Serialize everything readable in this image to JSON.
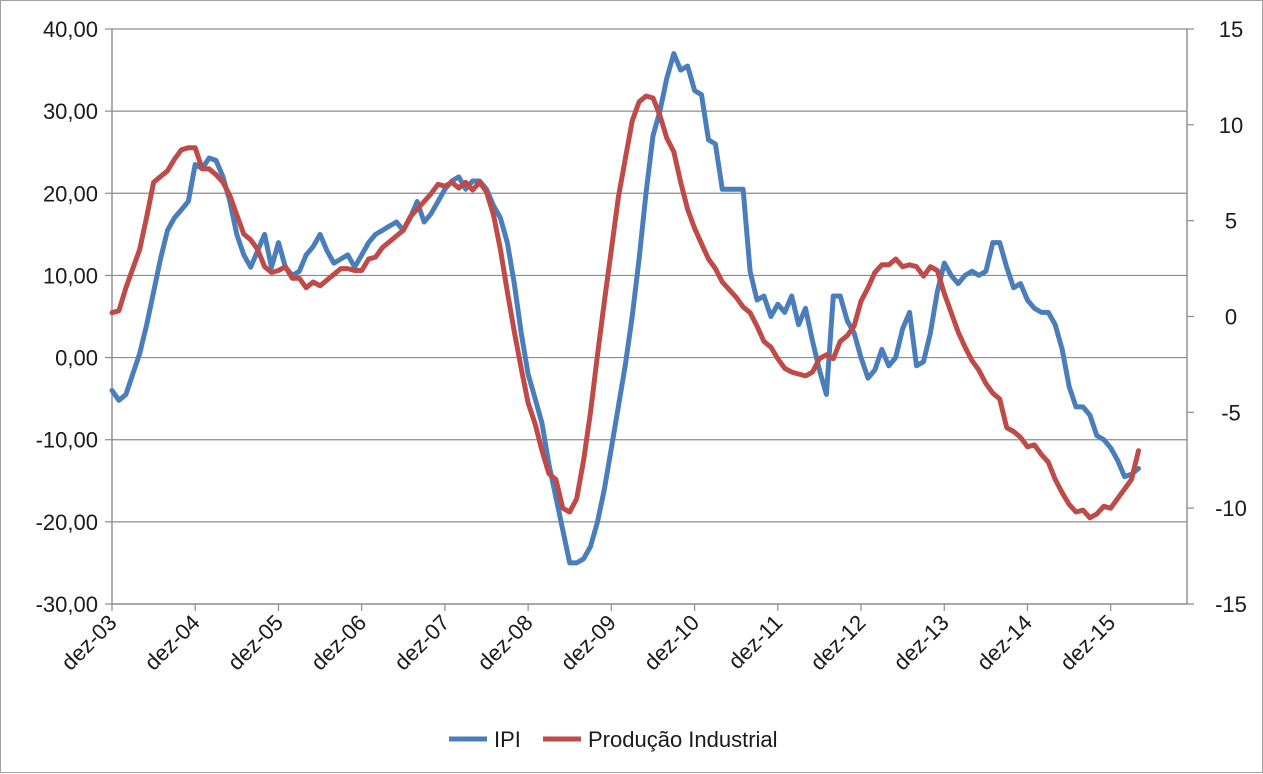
{
  "chart_data": {
    "type": "line",
    "title": "",
    "xlabel": "",
    "ylabel": "",
    "x_ticks": [
      "dez-03",
      "dez-04",
      "dez-05",
      "dez-06",
      "dez-07",
      "dez-08",
      "dez-09",
      "dez-10",
      "dez-11",
      "dez-12",
      "dez-13",
      "dez-14",
      "dez-15"
    ],
    "x_range_months": [
      0,
      155
    ],
    "y_left": {
      "range": [
        -30,
        40
      ],
      "ticks": [
        "40,00",
        "30,00",
        "20,00",
        "10,00",
        "0,00",
        "-10,00",
        "-20,00",
        "-30,00"
      ]
    },
    "y_right": {
      "range": [
        -15,
        15
      ],
      "ticks": [
        "15",
        "10",
        "5",
        "0",
        "-5",
        "-10",
        "-15"
      ]
    },
    "grid": "horizontal",
    "legend": "bottom",
    "series": [
      {
        "name": "IPI",
        "axis": "left",
        "color": "#4a7ebb",
        "points": [
          [
            0,
            -4
          ],
          [
            1,
            -5.2
          ],
          [
            2,
            -4.5
          ],
          [
            3,
            -2
          ],
          [
            4,
            0.5
          ],
          [
            5,
            4
          ],
          [
            6,
            8
          ],
          [
            7,
            12
          ],
          [
            8,
            15.5
          ],
          [
            9,
            17
          ],
          [
            10,
            18
          ],
          [
            11,
            19
          ],
          [
            12,
            23.5
          ],
          [
            13,
            23
          ],
          [
            14,
            24.3
          ],
          [
            15,
            24
          ],
          [
            16,
            22
          ],
          [
            17,
            19
          ],
          [
            18,
            15
          ],
          [
            19,
            12.5
          ],
          [
            20,
            11
          ],
          [
            21,
            13
          ],
          [
            22,
            15
          ],
          [
            23,
            11
          ],
          [
            24,
            14
          ],
          [
            25,
            11
          ],
          [
            26,
            10
          ],
          [
            27,
            10.5
          ],
          [
            28,
            12.5
          ],
          [
            29,
            13.5
          ],
          [
            30,
            15
          ],
          [
            31,
            13
          ],
          [
            32,
            11.5
          ],
          [
            33,
            12
          ],
          [
            34,
            12.5
          ],
          [
            35,
            11
          ],
          [
            36,
            12.5
          ],
          [
            37,
            14
          ],
          [
            38,
            15
          ],
          [
            39,
            15.5
          ],
          [
            40,
            16
          ],
          [
            41,
            16.5
          ],
          [
            42,
            15.5
          ],
          [
            43,
            17
          ],
          [
            44,
            19
          ],
          [
            45,
            16.5
          ],
          [
            46,
            17.5
          ],
          [
            47,
            19
          ],
          [
            48,
            20.5
          ],
          [
            49,
            21.5
          ],
          [
            50,
            22
          ],
          [
            51,
            20.5
          ],
          [
            52,
            21.5
          ],
          [
            53,
            21.5
          ],
          [
            54,
            20.5
          ],
          [
            55,
            18.5
          ],
          [
            56,
            17
          ],
          [
            57,
            14
          ],
          [
            58,
            9
          ],
          [
            59,
            3
          ],
          [
            60,
            -2
          ],
          [
            61,
            -5
          ],
          [
            62,
            -8
          ],
          [
            63,
            -13
          ],
          [
            64,
            -17
          ],
          [
            65,
            -21
          ],
          [
            66,
            -25
          ],
          [
            67,
            -25
          ],
          [
            68,
            -24.5
          ],
          [
            69,
            -23
          ],
          [
            70,
            -20
          ],
          [
            71,
            -16
          ],
          [
            72,
            -11
          ],
          [
            73,
            -6
          ],
          [
            74,
            -1
          ],
          [
            75,
            5
          ],
          [
            76,
            12
          ],
          [
            77,
            20
          ],
          [
            78,
            27
          ],
          [
            79,
            30
          ],
          [
            80,
            34
          ],
          [
            81,
            37
          ],
          [
            82,
            35
          ],
          [
            83,
            35.5
          ],
          [
            84,
            32.5
          ],
          [
            85,
            32
          ],
          [
            86,
            26.5
          ],
          [
            87,
            26
          ],
          [
            88,
            20.5
          ],
          [
            89,
            20.5
          ],
          [
            90,
            20.5
          ],
          [
            91,
            20.5
          ],
          [
            92,
            10.5
          ],
          [
            93,
            7
          ],
          [
            94,
            7.5
          ],
          [
            95,
            5
          ],
          [
            96,
            6.5
          ],
          [
            97,
            5.5
          ],
          [
            98,
            7.5
          ],
          [
            99,
            4
          ],
          [
            100,
            6
          ],
          [
            101,
            2
          ],
          [
            102,
            -1.5
          ],
          [
            103,
            -4.5
          ],
          [
            104,
            7.5
          ],
          [
            105,
            7.5
          ],
          [
            106,
            4.5
          ],
          [
            107,
            3
          ],
          [
            108,
            0
          ],
          [
            109,
            -2.5
          ],
          [
            110,
            -1.5
          ],
          [
            111,
            1
          ],
          [
            112,
            -1
          ],
          [
            113,
            0
          ],
          [
            114,
            3.5
          ],
          [
            115,
            5.5
          ],
          [
            116,
            -1
          ],
          [
            117,
            -0.5
          ],
          [
            118,
            3
          ],
          [
            119,
            8
          ],
          [
            120,
            11.5
          ],
          [
            121,
            10
          ],
          [
            122,
            9
          ],
          [
            123,
            10
          ],
          [
            124,
            10.5
          ],
          [
            125,
            10
          ],
          [
            126,
            10.5
          ],
          [
            127,
            14
          ],
          [
            128,
            14
          ],
          [
            129,
            11
          ],
          [
            130,
            8.5
          ],
          [
            131,
            9
          ],
          [
            132,
            7
          ],
          [
            133,
            6
          ],
          [
            134,
            5.5
          ],
          [
            135,
            5.5
          ],
          [
            136,
            4
          ],
          [
            137,
            1
          ],
          [
            138,
            -3.5
          ],
          [
            139,
            -6
          ],
          [
            140,
            -6
          ],
          [
            141,
            -7
          ],
          [
            142,
            -9.5
          ],
          [
            143,
            -10
          ],
          [
            144,
            -11
          ],
          [
            145,
            -12.5
          ],
          [
            146,
            -14.5
          ],
          [
            147,
            -14.2
          ],
          [
            148,
            -13.5
          ]
        ]
      },
      {
        "name": "Produção Industrial",
        "axis": "right",
        "color": "#be4b48",
        "points": [
          [
            0,
            0.2
          ],
          [
            1,
            0.3
          ],
          [
            2,
            1.5
          ],
          [
            3,
            2.5
          ],
          [
            4,
            3.5
          ],
          [
            5,
            5.2
          ],
          [
            6,
            7
          ],
          [
            7,
            7.3
          ],
          [
            8,
            7.6
          ],
          [
            9,
            8.2
          ],
          [
            10,
            8.7
          ],
          [
            11,
            8.8
          ],
          [
            12,
            8.8
          ],
          [
            13,
            7.7
          ],
          [
            14,
            7.7
          ],
          [
            15,
            7.4
          ],
          [
            16,
            7
          ],
          [
            17,
            6.3
          ],
          [
            18,
            5.3
          ],
          [
            19,
            4.3
          ],
          [
            20,
            4
          ],
          [
            21,
            3.5
          ],
          [
            22,
            2.6
          ],
          [
            23,
            2.3
          ],
          [
            24,
            2.4
          ],
          [
            25,
            2.6
          ],
          [
            26,
            2
          ],
          [
            27,
            2
          ],
          [
            28,
            1.5
          ],
          [
            29,
            1.8
          ],
          [
            30,
            1.6
          ],
          [
            31,
            1.9
          ],
          [
            32,
            2.2
          ],
          [
            33,
            2.5
          ],
          [
            34,
            2.5
          ],
          [
            35,
            2.4
          ],
          [
            36,
            2.4
          ],
          [
            37,
            3
          ],
          [
            38,
            3.1
          ],
          [
            39,
            3.6
          ],
          [
            40,
            3.9
          ],
          [
            41,
            4.2
          ],
          [
            42,
            4.5
          ],
          [
            43,
            5.2
          ],
          [
            44,
            5.6
          ],
          [
            45,
            6
          ],
          [
            46,
            6.4
          ],
          [
            47,
            6.9
          ],
          [
            48,
            6.8
          ],
          [
            49,
            7
          ],
          [
            50,
            6.7
          ],
          [
            51,
            7
          ],
          [
            52,
            6.6
          ],
          [
            53,
            7
          ],
          [
            54,
            6.5
          ],
          [
            55,
            5.3
          ],
          [
            56,
            3.5
          ],
          [
            57,
            1.3
          ],
          [
            58,
            -0.8
          ],
          [
            59,
            -2.7
          ],
          [
            60,
            -4.5
          ],
          [
            61,
            -5.6
          ],
          [
            62,
            -7
          ],
          [
            63,
            -8.2
          ],
          [
            64,
            -8.5
          ],
          [
            65,
            -10
          ],
          [
            66,
            -10.2
          ],
          [
            67,
            -9.5
          ],
          [
            68,
            -7.5
          ],
          [
            69,
            -5
          ],
          [
            70,
            -2
          ],
          [
            71,
            0.8
          ],
          [
            72,
            3.5
          ],
          [
            73,
            6.2
          ],
          [
            74,
            8.2
          ],
          [
            75,
            10.2
          ],
          [
            76,
            11.2
          ],
          [
            77,
            11.5
          ],
          [
            78,
            11.4
          ],
          [
            79,
            10.5
          ],
          [
            80,
            9.3
          ],
          [
            81,
            8.6
          ],
          [
            82,
            7
          ],
          [
            83,
            5.6
          ],
          [
            84,
            4.6
          ],
          [
            85,
            3.8
          ],
          [
            86,
            3
          ],
          [
            87,
            2.5
          ],
          [
            88,
            1.8
          ],
          [
            89,
            1.4
          ],
          [
            90,
            1
          ],
          [
            91,
            0.5
          ],
          [
            92,
            0.2
          ],
          [
            93,
            -0.5
          ],
          [
            94,
            -1.3
          ],
          [
            95,
            -1.6
          ],
          [
            96,
            -2.2
          ],
          [
            97,
            -2.7
          ],
          [
            98,
            -2.9
          ],
          [
            99,
            -3
          ],
          [
            100,
            -3.1
          ],
          [
            101,
            -2.9
          ],
          [
            102,
            -2.2
          ],
          [
            103,
            -2
          ],
          [
            104,
            -2.2
          ],
          [
            105,
            -1.3
          ],
          [
            106,
            -1
          ],
          [
            107,
            -0.5
          ],
          [
            108,
            0.8
          ],
          [
            109,
            1.5
          ],
          [
            110,
            2.3
          ],
          [
            111,
            2.7
          ],
          [
            112,
            2.7
          ],
          [
            113,
            3
          ],
          [
            114,
            2.6
          ],
          [
            115,
            2.7
          ],
          [
            116,
            2.6
          ],
          [
            117,
            2.1
          ],
          [
            118,
            2.6
          ],
          [
            119,
            2.4
          ],
          [
            120,
            1.2
          ],
          [
            121,
            0.2
          ],
          [
            122,
            -0.8
          ],
          [
            123,
            -1.6
          ],
          [
            124,
            -2.3
          ],
          [
            125,
            -2.8
          ],
          [
            126,
            -3.5
          ],
          [
            127,
            -4
          ],
          [
            128,
            -4.3
          ],
          [
            129,
            -5.8
          ],
          [
            130,
            -6
          ],
          [
            131,
            -6.3
          ],
          [
            132,
            -6.8
          ],
          [
            133,
            -6.7
          ],
          [
            134,
            -7.2
          ],
          [
            135,
            -7.6
          ],
          [
            136,
            -8.5
          ],
          [
            137,
            -9.2
          ],
          [
            138,
            -9.8
          ],
          [
            139,
            -10.2
          ],
          [
            140,
            -10.1
          ],
          [
            141,
            -10.5
          ],
          [
            142,
            -10.3
          ],
          [
            143,
            -9.9
          ],
          [
            144,
            -10
          ],
          [
            145,
            -9.5
          ],
          [
            146,
            -9
          ],
          [
            147,
            -8.5
          ],
          [
            148,
            -7
          ]
        ]
      }
    ]
  }
}
